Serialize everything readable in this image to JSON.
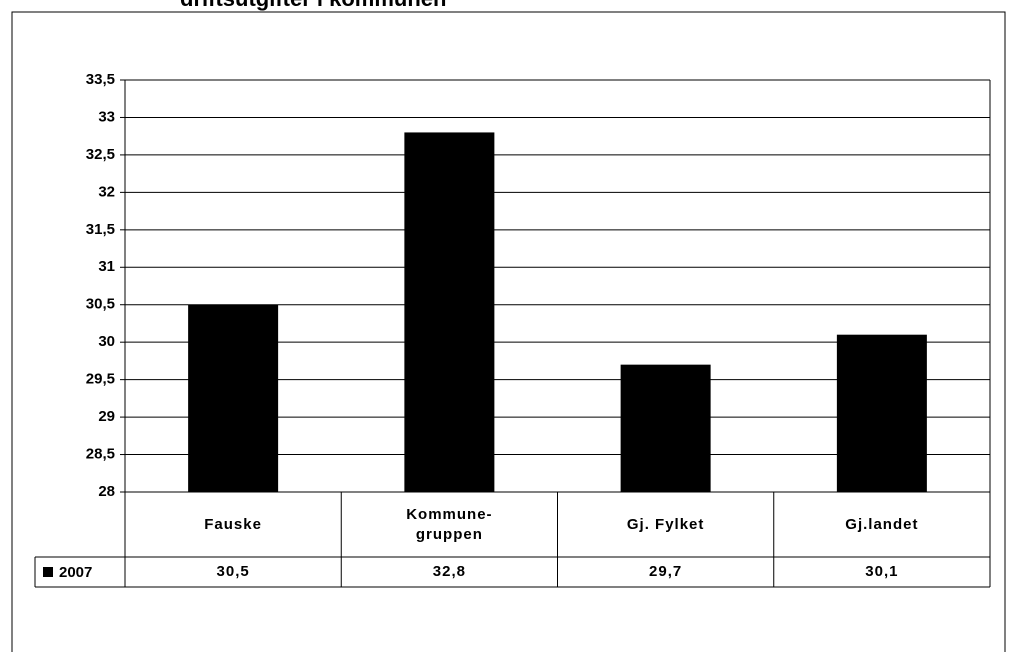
{
  "chart_data": {
    "type": "bar",
    "title": "driftsutgifter i kommunen",
    "categories": [
      "Fauske",
      "Kommune-\ngruppen",
      "Gj. Fylket",
      "Gj.landet"
    ],
    "series": [
      {
        "name": "2007",
        "color": "#000000",
        "values": [
          30.5,
          32.8,
          29.7,
          30.1
        ],
        "value_labels": [
          "30,5",
          "32,8",
          "29,7",
          "30,1"
        ]
      }
    ],
    "ylim": [
      28,
      33.5
    ],
    "yticks": [
      28,
      {
        "value": 28.5,
        "label": "28,5"
      },
      29,
      {
        "value": 29.5,
        "label": "29,5"
      },
      30,
      {
        "value": 30.5,
        "label": "30,5"
      },
      31,
      {
        "value": 31.5,
        "label": "31,5"
      },
      32,
      {
        "value": 32.5,
        "label": "32,5"
      },
      33,
      {
        "value": 33.5,
        "label": "33,5"
      }
    ],
    "grid": true
  }
}
